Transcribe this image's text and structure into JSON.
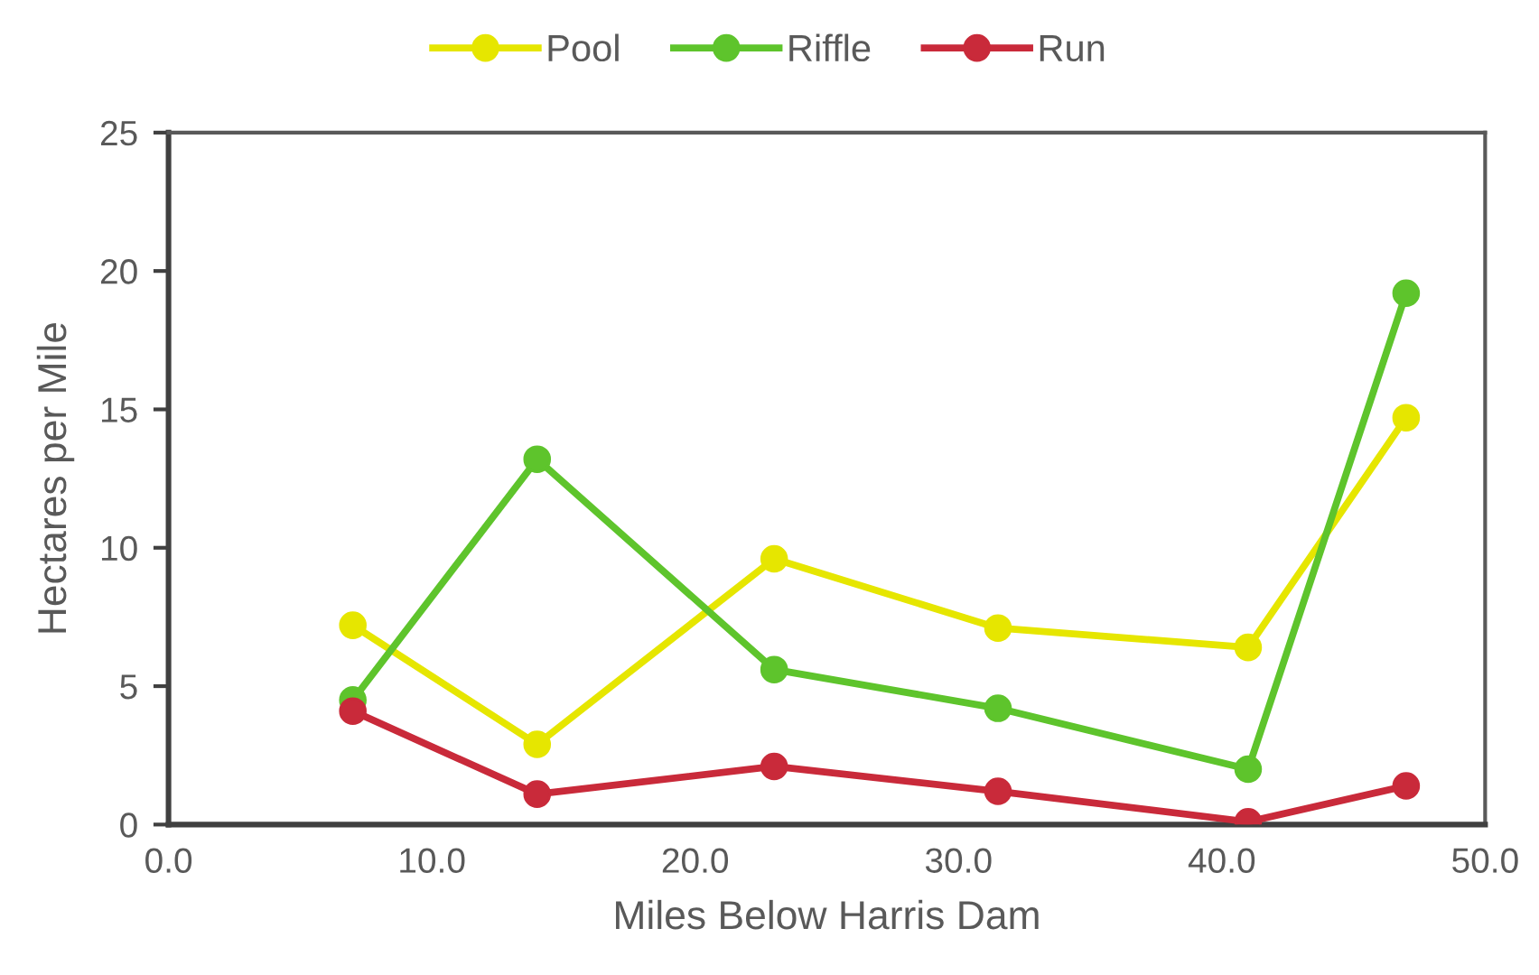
{
  "chart_data": {
    "type": "line",
    "xlabel": "Miles Below Harris Dam",
    "ylabel": "Hectares per Mile",
    "x": [
      7.0,
      14.0,
      23.0,
      31.5,
      41.0,
      47.0
    ],
    "series": [
      {
        "name": "Pool",
        "color": "#e6e600",
        "values": [
          7.2,
          2.9,
          9.6,
          7.1,
          6.4,
          14.7
        ]
      },
      {
        "name": "Riffle",
        "color": "#5ec42c",
        "values": [
          4.5,
          13.2,
          5.6,
          4.2,
          2.0,
          19.2
        ]
      },
      {
        "name": "Run",
        "color": "#c92a3a",
        "values": [
          4.1,
          1.1,
          2.1,
          1.2,
          0.1,
          1.4
        ]
      }
    ],
    "xlim": [
      0,
      50
    ],
    "xticks": [
      {
        "value": 0,
        "label": "0.0"
      },
      {
        "value": 10,
        "label": "10.0"
      },
      {
        "value": 20,
        "label": "20.0"
      },
      {
        "value": 30,
        "label": "30.0"
      },
      {
        "value": 40,
        "label": "40.0"
      },
      {
        "value": 50,
        "label": "50.0"
      }
    ],
    "ylim": [
      0,
      25
    ],
    "yticks": [
      0,
      5,
      10,
      15,
      20,
      25
    ],
    "grid": false,
    "legend": "top",
    "marker": "circle",
    "line_style": "solid"
  }
}
